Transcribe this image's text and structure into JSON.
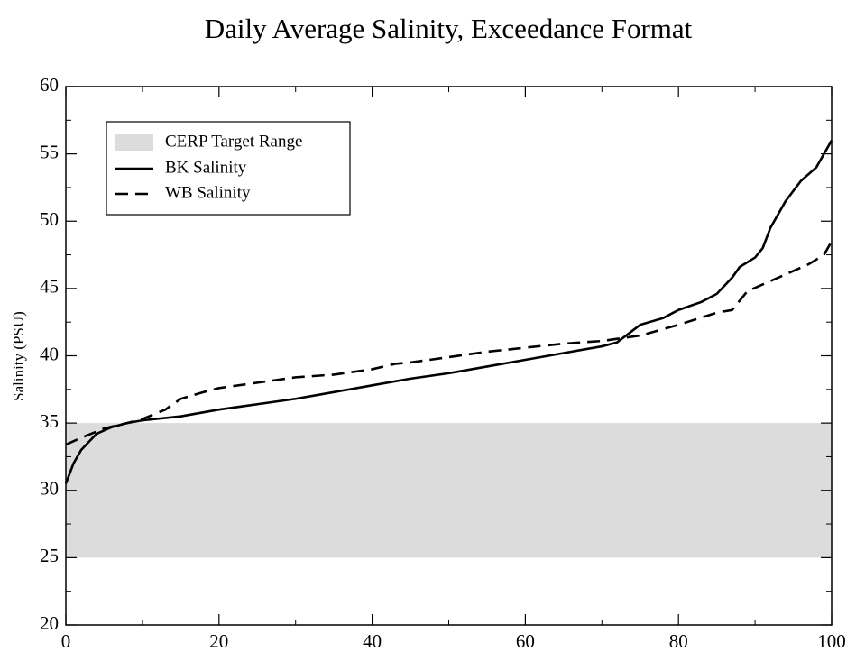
{
  "chart_data": {
    "type": "line",
    "title": "Daily Average Salinity, Exceedance Format",
    "y_label": "Salinity (PSU)",
    "xlim": [
      0,
      100
    ],
    "ylim": [
      20,
      60
    ],
    "xticks": [
      0,
      20,
      40,
      60,
      80,
      100
    ],
    "yticks": [
      20,
      25,
      30,
      35,
      40,
      45,
      50,
      55,
      60
    ],
    "xminorticks": [
      10,
      30,
      50,
      70,
      90
    ],
    "yminorticks": [
      22.5,
      27.5,
      32.5,
      37.5,
      42.5,
      47.5,
      52.5,
      57.5
    ],
    "legend": "upper left",
    "target_band": {
      "name": "CERP Target Range",
      "color": "#dcdcdc",
      "low": 25,
      "high": 35
    },
    "series": [
      {
        "name": "BK Salinity",
        "color": "#000000",
        "dash": "solid",
        "x": [
          0,
          1,
          2,
          4,
          6,
          8,
          10,
          15,
          20,
          25,
          30,
          35,
          40,
          45,
          50,
          55,
          60,
          65,
          70,
          72,
          75,
          78,
          80,
          83,
          85,
          87,
          88,
          90,
          91,
          92,
          94,
          96,
          98,
          99,
          100
        ],
        "values": [
          30.5,
          32,
          33,
          34.2,
          34.7,
          35,
          35.2,
          35.5,
          36,
          36.4,
          36.8,
          37.3,
          37.8,
          38.3,
          38.7,
          39.2,
          39.7,
          40.2,
          40.7,
          41,
          42.3,
          42.8,
          43.4,
          44,
          44.6,
          45.8,
          46.6,
          47.3,
          48,
          49.5,
          51.5,
          53,
          54,
          55,
          56
        ]
      },
      {
        "name": "WB Salinity",
        "color": "#000000",
        "dash": "dashed",
        "x": [
          0,
          2,
          5,
          8,
          10,
          13,
          15,
          18,
          20,
          25,
          30,
          35,
          40,
          43,
          45,
          50,
          55,
          60,
          65,
          70,
          75,
          80,
          85,
          87,
          89,
          91,
          93,
          95,
          97,
          99,
          100
        ],
        "values": [
          33.4,
          33.9,
          34.6,
          35,
          35.3,
          36,
          36.8,
          37.3,
          37.6,
          38,
          38.4,
          38.6,
          39,
          39.4,
          39.5,
          39.9,
          40.3,
          40.6,
          40.9,
          41.1,
          41.5,
          42.3,
          43.2,
          43.4,
          44.8,
          45.3,
          45.8,
          46.3,
          46.8,
          47.5,
          48.5
        ]
      }
    ]
  }
}
